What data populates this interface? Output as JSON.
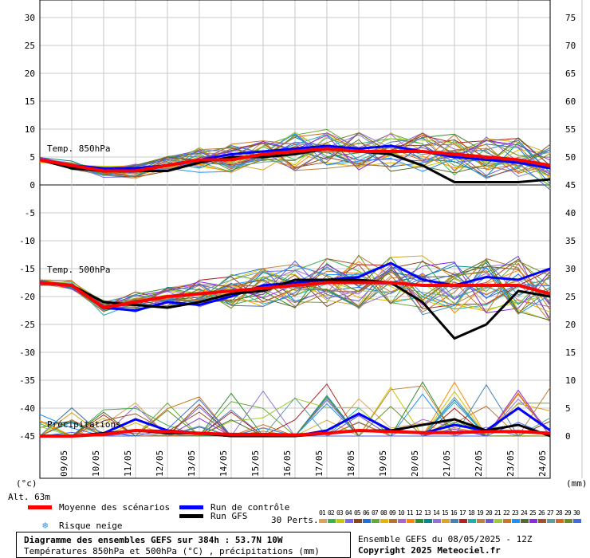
{
  "chart_data": {
    "type": "line",
    "left_axis": {
      "ticks": [
        30,
        25,
        20,
        15,
        10,
        5,
        0,
        -5,
        -10,
        -15,
        -20,
        -25,
        -30,
        -35,
        -40,
        -45
      ],
      "unit_label": "(°c)"
    },
    "right_axis": {
      "ticks": [
        75,
        70,
        65,
        60,
        55,
        50,
        45,
        40,
        35,
        30,
        25,
        20,
        15,
        10,
        5,
        0
      ],
      "unit_label": "(mm)"
    },
    "x_ticks": [
      "09/05",
      "10/05",
      "11/05",
      "12/05",
      "13/05",
      "14/05",
      "15/05",
      "16/05",
      "17/05",
      "18/05",
      "19/05",
      "20/05",
      "21/05",
      "22/05",
      "23/05",
      "24/05"
    ],
    "grid": true,
    "annotations": {
      "t850": "Temp. 850hPa",
      "t500": "Temp. 500hPa",
      "precip": "Précipitations",
      "altitude": "Alt. 63m"
    },
    "series": [
      {
        "name": "Moyenne des scénarios",
        "color": "#ff0000",
        "t850": [
          4.5,
          3.5,
          2.5,
          2.5,
          3.5,
          4.5,
          4.5,
          5.5,
          6,
          6.5,
          6,
          6,
          6,
          5.5,
          5,
          4.5,
          3.5
        ],
        "t500": [
          -17.5,
          -18,
          -22,
          -21,
          -20,
          -19.5,
          -19,
          -18.5,
          -18,
          -17.5,
          -17.5,
          -17.5,
          -18,
          -18,
          -18,
          -18,
          -19.5
        ],
        "precip": [
          0,
          0,
          0.3,
          1,
          0.8,
          0.5,
          0.3,
          0.3,
          0.2,
          0.5,
          1,
          0.8,
          0.6,
          0.6,
          0.8,
          0.8,
          0.5
        ]
      },
      {
        "name": "Run de contrôle",
        "color": "#0000ff",
        "t850": [
          4.5,
          3.5,
          3,
          3,
          3.5,
          4.5,
          5.5,
          6,
          6.5,
          7,
          6.5,
          7,
          6,
          5,
          4.5,
          4,
          3
        ],
        "t500": [
          -17.5,
          -18,
          -22,
          -22.5,
          -21,
          -21.5,
          -20,
          -18,
          -17.5,
          -17,
          -16.5,
          -14,
          -17,
          -18,
          -16.5,
          -17,
          -15
        ],
        "precip": [
          0,
          0,
          0.5,
          3,
          1,
          0.5,
          0,
          0,
          0,
          1,
          4,
          1,
          0.5,
          2,
          1,
          5,
          1
        ]
      },
      {
        "name": "Run GFS",
        "color": "#000000",
        "t850": [
          4.5,
          3,
          2.5,
          2.5,
          2.5,
          4,
          5,
          5,
          5.5,
          6.5,
          6,
          5.5,
          3.5,
          0.5,
          0.5,
          0.5,
          1
        ],
        "t500": [
          -17.5,
          -18,
          -21,
          -21.5,
          -22,
          -21,
          -19.5,
          -19,
          -17,
          -17,
          -17,
          -17.5,
          -21,
          -27.5,
          -25,
          -19,
          -20
        ],
        "precip": [
          0,
          0,
          0.5,
          1,
          0.5,
          0.5,
          0,
          0,
          0,
          0.5,
          1,
          1,
          2,
          3,
          1,
          2,
          0
        ]
      }
    ],
    "ensemble_members": [
      "01",
      "02",
      "03",
      "04",
      "05",
      "06",
      "07",
      "08",
      "09",
      "10",
      "11",
      "12",
      "13",
      "14",
      "15",
      "16",
      "17",
      "18",
      "19",
      "20",
      "21",
      "22",
      "23",
      "24",
      "25",
      "26",
      "27",
      "28",
      "29",
      "30"
    ],
    "member_colors": [
      "#d9a35b",
      "#3cb44b",
      "#c9c900",
      "#7b68ee",
      "#8b4513",
      "#1e6fd9",
      "#66aa33",
      "#e6b400",
      "#b87333",
      "#aa66cc",
      "#ff8800",
      "#2f8f2f",
      "#008b8b",
      "#9370db",
      "#daa520",
      "#4682b4",
      "#b22222",
      "#20b2aa",
      "#c08040",
      "#6a5acd",
      "#9acd32",
      "#cc7722",
      "#1e90ff",
      "#556b2f",
      "#8a2be2",
      "#a0522d",
      "#5f9ea0",
      "#d2691e",
      "#6b8e23",
      "#4169e1"
    ]
  },
  "legend": {
    "mean_label": "Moyenne des scénarios",
    "control_label": "Run de contrôle",
    "gfs_label": "Run GFS",
    "snow_label": "Risque neige",
    "perts_label": "30 Perts."
  },
  "footer": {
    "title": "Diagramme des ensembles GEFS sur 384h : 53.7N 10W",
    "subtitle": "Températures 850hPa et 500hPa (°C) , précipitations (mm)",
    "run_info": "Ensemble GEFS du 08/05/2025 - 12Z",
    "copyright": "Copyright 2025 Meteociel.fr"
  }
}
